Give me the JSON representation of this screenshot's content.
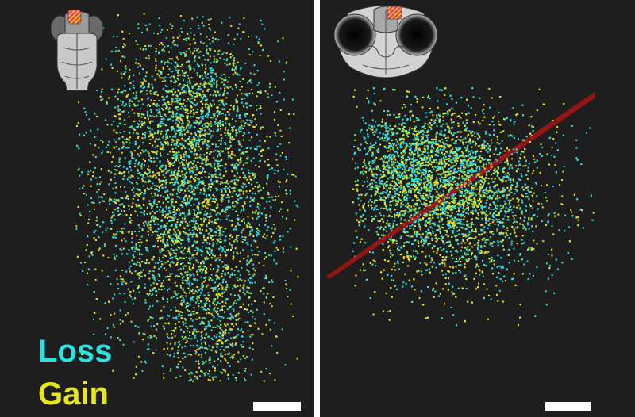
{
  "colors": {
    "background": "#1e1e1e",
    "divider": "#ffffff",
    "loss": "#29e3e3",
    "gain": "#e6e619",
    "plane": "#a01414",
    "region_highlight": "#e0308a",
    "region_stripe": "#f2c200"
  },
  "legend": {
    "loss_label": "Loss",
    "gain_label": "Gain"
  },
  "panels": [
    {
      "view": "dorsal",
      "icon": "brain-dorsal-icon"
    },
    {
      "view": "frontal",
      "icon": "brain-frontal-icon"
    }
  ],
  "scale_bar": {
    "visible": true
  }
}
